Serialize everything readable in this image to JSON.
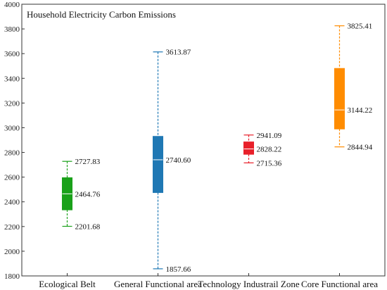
{
  "chart_data": {
    "type": "box",
    "title": "Household Electricity Carbon Emissions",
    "xlabel": "",
    "ylabel": "",
    "ylim": [
      1800,
      4000
    ],
    "yticks": [
      1800,
      2000,
      2200,
      2400,
      2600,
      2800,
      3000,
      3200,
      3400,
      3600,
      3800,
      4000
    ],
    "grid": false,
    "categories": [
      "Ecological Belt",
      "General Functional area",
      "Technology Industrail Zone",
      "Core Functional area"
    ],
    "series": [
      {
        "category": "Ecological Belt",
        "color": "#1aa11a",
        "min": 2201.68,
        "q1": 2335,
        "median": 2464.76,
        "q3": 2595,
        "max": 2727.83,
        "labels": [
          "2727.83",
          "2464.76",
          "2201.68"
        ]
      },
      {
        "category": "General Functional area",
        "color": "#1f78b4",
        "min": 1857.66,
        "q1": 2475,
        "median": 2740.6,
        "q3": 2930,
        "max": 3613.87,
        "labels": [
          "3613.87",
          "2740.60",
          "1857.66"
        ]
      },
      {
        "category": "Technology Industrail Zone",
        "color": "#e8202a",
        "min": 2715.36,
        "q1": 2785,
        "median": 2828.22,
        "q3": 2885,
        "max": 2941.09,
        "labels": [
          "2941.09",
          "2828.22",
          "2715.36"
        ]
      },
      {
        "category": "Core Functional area",
        "color": "#ff8c00",
        "min": 2844.94,
        "q1": 2990,
        "median": 3144.22,
        "q3": 3480,
        "max": 3825.41,
        "labels": [
          "3825.41",
          "3144.22",
          "2844.94"
        ]
      }
    ]
  }
}
